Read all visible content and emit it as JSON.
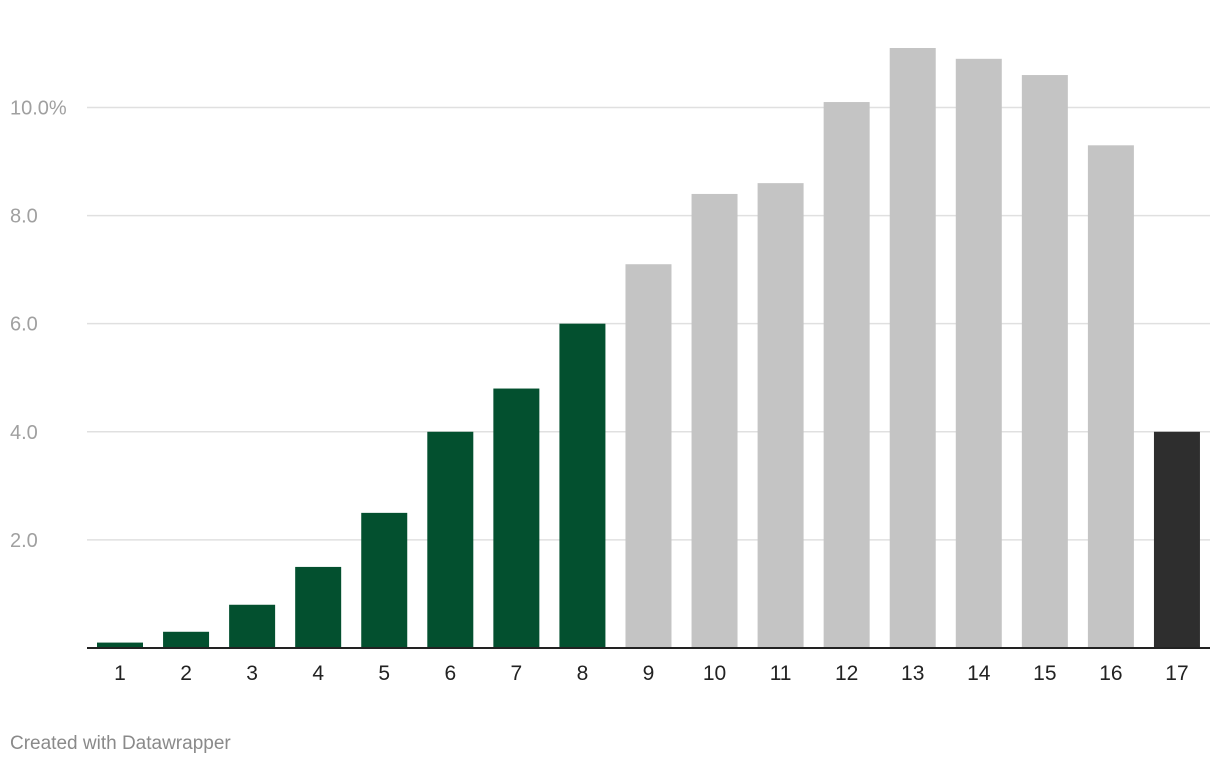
{
  "chart_data": {
    "type": "bar",
    "categories": [
      "1",
      "2",
      "3",
      "4",
      "5",
      "6",
      "7",
      "8",
      "9",
      "10",
      "11",
      "12",
      "13",
      "14",
      "15",
      "16",
      "17"
    ],
    "values": [
      0.1,
      0.3,
      0.8,
      1.5,
      2.5,
      4.0,
      4.8,
      6.0,
      7.1,
      8.4,
      8.6,
      10.1,
      11.1,
      10.9,
      10.6,
      9.3,
      4.0
    ],
    "bar_colors": [
      "#03502f",
      "#03502f",
      "#03502f",
      "#03502f",
      "#03502f",
      "#03502f",
      "#03502f",
      "#03502f",
      "#c4c4c4",
      "#c4c4c4",
      "#c4c4c4",
      "#c4c4c4",
      "#c4c4c4",
      "#c4c4c4",
      "#c4c4c4",
      "#c4c4c4",
      "#2e2e2e"
    ],
    "y_ticks": [
      {
        "value": 2,
        "label": "2.0"
      },
      {
        "value": 4,
        "label": "4.0"
      },
      {
        "value": 6,
        "label": "6.0"
      },
      {
        "value": 8,
        "label": "8.0"
      },
      {
        "value": 10,
        "label": "10.0%"
      }
    ],
    "ylim": [
      0,
      11.1
    ],
    "grid": true,
    "title": "",
    "xlabel": "",
    "ylabel": ""
  },
  "colors": {
    "grid": "#e0e0e0",
    "axis": "#222222",
    "tick_y": "#a0a0a0",
    "tick_x": "#222222"
  },
  "footer": {
    "credit": "Created with Datawrapper"
  }
}
